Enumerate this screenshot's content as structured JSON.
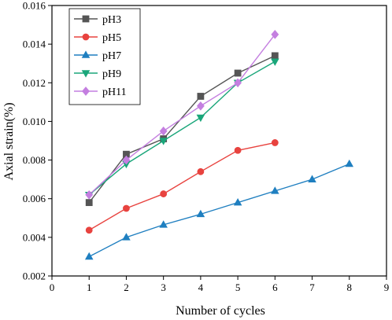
{
  "chart_data": {
    "type": "line",
    "title": "",
    "xlabel": "Number of cycles",
    "ylabel": "Axial strain(%)",
    "xlim": [
      0,
      9
    ],
    "ylim": [
      0.002,
      0.016
    ],
    "xticks": [
      0,
      1,
      2,
      3,
      4,
      5,
      6,
      7,
      8,
      9
    ],
    "yticks": [
      0.002,
      0.004,
      0.006,
      0.008,
      0.01,
      0.012,
      0.014,
      0.016
    ],
    "xtick_labels": [
      "0",
      "1",
      "2",
      "3",
      "4",
      "5",
      "6",
      "7",
      "8",
      "9"
    ],
    "ytick_labels": [
      "0.002",
      "0.004",
      "0.006",
      "0.008",
      "0.010",
      "0.012",
      "0.014",
      "0.016"
    ],
    "grid": false,
    "legend_position": "top-left",
    "series": [
      {
        "name": "pH3",
        "color": "#555555",
        "marker": "square",
        "x": [
          1,
          2,
          3,
          4,
          5,
          6
        ],
        "y": [
          0.0058,
          0.0083,
          0.0091,
          0.0113,
          0.0125,
          0.0134
        ]
      },
      {
        "name": "pH5",
        "color": "#e8433f",
        "marker": "circle",
        "x": [
          1,
          2,
          3,
          4,
          5,
          6
        ],
        "y": [
          0.00437,
          0.0055,
          0.00625,
          0.0074,
          0.0085,
          0.0089
        ]
      },
      {
        "name": "pH7",
        "color": "#1f7fc0",
        "marker": "triangle-up",
        "x": [
          1,
          2,
          3,
          4,
          5,
          6,
          7,
          8
        ],
        "y": [
          0.003,
          0.004,
          0.00465,
          0.0052,
          0.0058,
          0.0064,
          0.007,
          0.0078
        ]
      },
      {
        "name": "pH9",
        "color": "#1aa67a",
        "marker": "triangle-down",
        "x": [
          1,
          2,
          3,
          4,
          5,
          6
        ],
        "y": [
          0.0062,
          0.0078,
          0.009,
          0.0102,
          0.012,
          0.0131
        ]
      },
      {
        "name": "pH11",
        "color": "#c47fe0",
        "marker": "diamond",
        "x": [
          1,
          2,
          3,
          4,
          5,
          6
        ],
        "y": [
          0.0062,
          0.008,
          0.0095,
          0.0108,
          0.012,
          0.0145
        ]
      }
    ]
  }
}
